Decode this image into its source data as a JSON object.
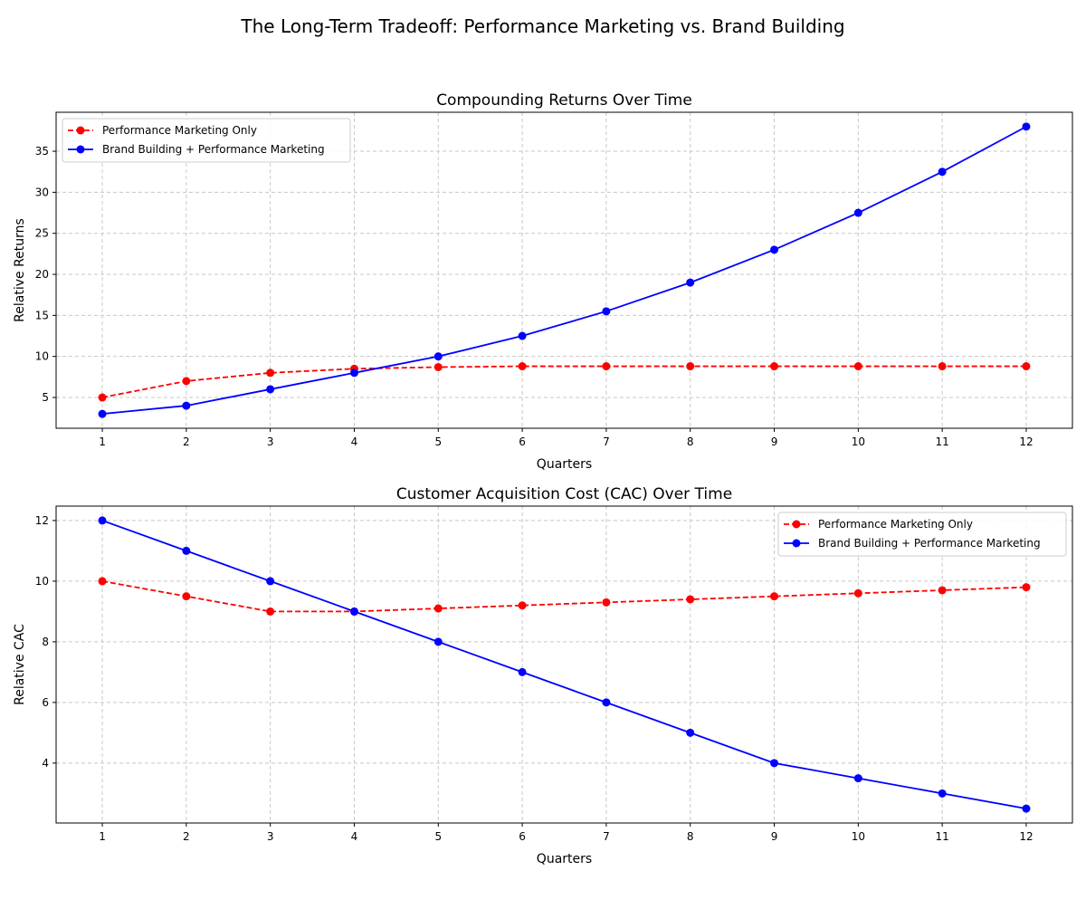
{
  "suptitle": "The Long-Term Tradeoff: Performance Marketing vs. Brand Building",
  "chart_data": [
    {
      "type": "line",
      "title": "Compounding Returns Over Time",
      "xlabel": "Quarters",
      "ylabel": "Relative Returns",
      "x": [
        1,
        2,
        3,
        4,
        5,
        6,
        7,
        8,
        9,
        10,
        11,
        12
      ],
      "xlim": [
        0.45,
        12.55
      ],
      "ylim": [
        1.25,
        39.75
      ],
      "yticks": [
        5,
        10,
        15,
        20,
        25,
        30,
        35
      ],
      "grid": true,
      "legend_position": "top-left",
      "series": [
        {
          "name": "Performance Marketing Only",
          "color": "#ff0000",
          "dashed": true,
          "values": [
            5,
            7,
            8,
            8.5,
            8.7,
            8.8,
            8.8,
            8.8,
            8.8,
            8.8,
            8.8,
            8.8
          ]
        },
        {
          "name": "Brand Building + Performance Marketing",
          "color": "#0000ff",
          "dashed": false,
          "values": [
            3,
            4,
            6,
            8,
            10,
            12.5,
            15.5,
            19,
            23,
            27.5,
            32.5,
            38
          ]
        }
      ]
    },
    {
      "type": "line",
      "title": "Customer Acquisition Cost (CAC) Over Time",
      "xlabel": "Quarters",
      "ylabel": "Relative CAC",
      "x": [
        1,
        2,
        3,
        4,
        5,
        6,
        7,
        8,
        9,
        10,
        11,
        12
      ],
      "xlim": [
        0.45,
        12.55
      ],
      "ylim": [
        2.025,
        12.475
      ],
      "yticks": [
        4,
        6,
        8,
        10,
        12
      ],
      "grid": true,
      "legend_position": "top-right",
      "series": [
        {
          "name": "Performance Marketing Only",
          "color": "#ff0000",
          "dashed": true,
          "values": [
            10,
            9.5,
            9,
            9,
            9.1,
            9.2,
            9.3,
            9.4,
            9.5,
            9.6,
            9.7,
            9.8
          ]
        },
        {
          "name": "Brand Building + Performance Marketing",
          "color": "#0000ff",
          "dashed": false,
          "values": [
            12,
            11,
            10,
            9,
            8,
            7,
            6,
            5,
            4,
            3.5,
            3,
            2.5
          ]
        }
      ]
    }
  ]
}
